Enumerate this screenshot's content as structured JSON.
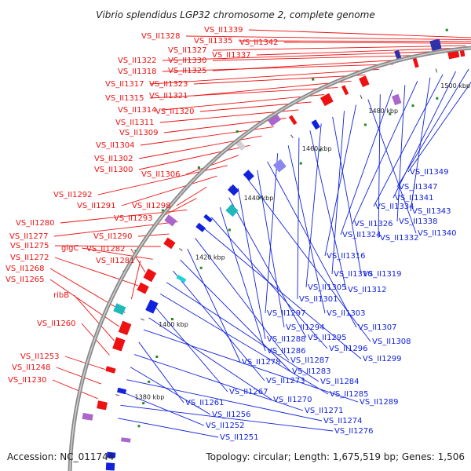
{
  "title": "Vibrio splendidus LGP32 chromosome 2, complete genome",
  "accession": "Accession: NC_011744",
  "summary": "Topology: circular; Length: 1,675,519 bp; Genes: 1,506",
  "colors": {
    "forward": "#ee1111",
    "reverse": "#1122dd",
    "backbone": "#8a8a8a",
    "dot": "#228822"
  },
  "ticks": [
    {
      "label": "1380 kbp"
    },
    {
      "label": "1400 kbp"
    },
    {
      "label": "1420 kbp"
    },
    {
      "label": "1440 kbp"
    },
    {
      "label": "1460 kbp"
    },
    {
      "label": "1480 kbp"
    },
    {
      "label": "1500 kbp"
    }
  ],
  "left_labels": [
    "VS_II1339",
    "VS_II1328",
    "VS_II1335",
    "VS_II1342",
    "VS_II1327",
    "VS_II1337",
    "VS_II1322",
    "VS_II1330",
    "VS_II1325",
    "VS_II1318",
    "VS_II1317",
    "VS_II1323",
    "VS_II1321",
    "VS_II1315",
    "VS_II1314",
    "VS_II1320",
    "VS_II1311",
    "VS_II1309",
    "VS_II1304",
    "VS_II1302",
    "VS_II1300",
    "VS_II1306",
    "VS_II1292",
    "VS_II1291",
    "VS_II1298",
    "VS_II1293",
    "VS_II1280",
    "VS_II1277",
    "VS_II1290",
    "VS_II1275",
    "glgC",
    "VS_II1282",
    "VS_II1272",
    "VS_II1281",
    "VS_II1268",
    "VS_II1265",
    "ribB",
    "VS_II1260",
    "VS_II1253",
    "VS_II1248",
    "VS_II1230"
  ],
  "right_labels": [
    "VS_II1349",
    "VS_II1347",
    "VS_II1341",
    "VS_II1334",
    "VS_II1343",
    "VS_II1326",
    "VS_II1338",
    "VS_II1324",
    "VS_II1332",
    "VS_II1340",
    "VS_II1316",
    "VS_II1310",
    "VS_II1319",
    "VS_II1305",
    "VS_II1312",
    "VS_II1301",
    "VS_II1303",
    "VS_II1297",
    "VS_II1307",
    "VS_II1294",
    "VS_II1308",
    "VS_II1288",
    "VS_II1295",
    "VS_II1286",
    "VS_II1296",
    "VS_II1299",
    "VS_II1287",
    "VS_II1278",
    "VS_II1283",
    "VS_II1273",
    "VS_II1284",
    "VS_II1285",
    "VS_II1267",
    "VS_II1270",
    "VS_II1289",
    "VS_II1261",
    "VS_II1271",
    "VS_II1256",
    "VS_II1274",
    "VS_II1252",
    "VS_II1276",
    "VS_II1251"
  ]
}
